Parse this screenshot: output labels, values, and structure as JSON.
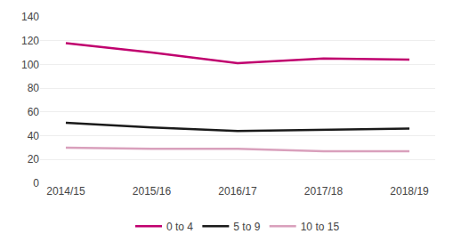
{
  "chart_data": {
    "type": "line",
    "categories": [
      "2014/15",
      "2015/16",
      "2016/17",
      "2017/18",
      "2018/19"
    ],
    "series": [
      {
        "name": "0 to 4",
        "color": "#c0006e",
        "values": [
          118,
          110,
          101,
          105,
          104
        ]
      },
      {
        "name": "5 to 9",
        "color": "#1a1a1a",
        "values": [
          51,
          47,
          44,
          45,
          46
        ]
      },
      {
        "name": "10 to 15",
        "color": "#d9a0bc",
        "values": [
          30,
          29,
          29,
          27,
          27
        ]
      }
    ],
    "ylim": [
      0,
      140
    ],
    "yticks": [
      0,
      20,
      40,
      60,
      80,
      100,
      120,
      140
    ],
    "grid": true,
    "legend": "bottom"
  }
}
